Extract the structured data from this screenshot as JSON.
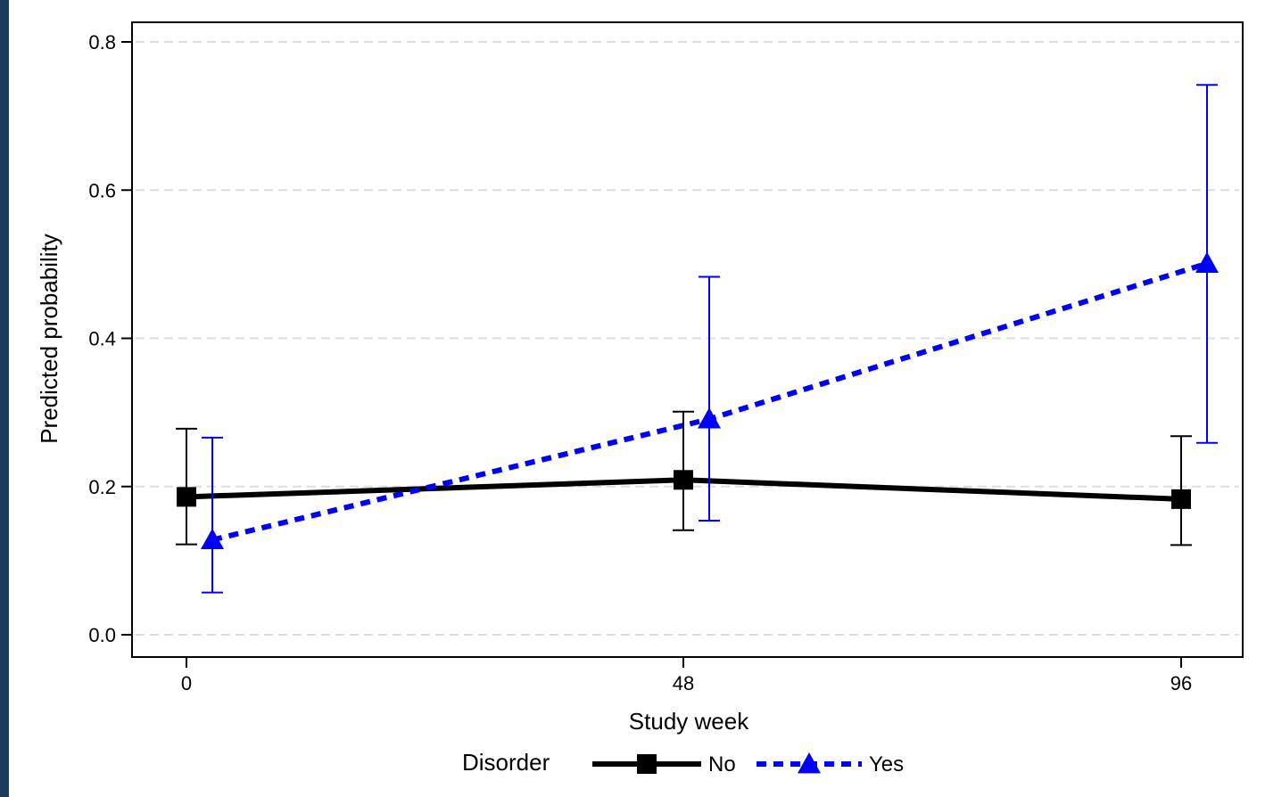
{
  "colors": {
    "frame_background": "#1f3b5c",
    "series_no": "#000000",
    "series_yes": "#0000ff",
    "grid": "#dddddd"
  },
  "chart_data": {
    "type": "line",
    "title": "",
    "xlabel": "Study week",
    "ylabel": "Predicted probability",
    "x": [
      0,
      48,
      96
    ],
    "x_ticks": [
      "0",
      "48",
      "96"
    ],
    "y_ticks": [
      "0.0",
      "0.2",
      "0.4",
      "0.6",
      "0.8"
    ],
    "ylim": [
      -0.03,
      0.83
    ],
    "grid": "horizontal dashed",
    "legend": {
      "title": "Disorder",
      "placement": "bottom-center"
    },
    "series": [
      {
        "name": "No",
        "color": "#000000",
        "marker": "square",
        "line_style": "solid",
        "values": [
          0.186,
          0.209,
          0.183
        ],
        "ci_lower": [
          0.122,
          0.141,
          0.121
        ],
        "ci_upper": [
          0.278,
          0.301,
          0.268
        ]
      },
      {
        "name": "Yes",
        "color": "#0000ff",
        "marker": "triangle",
        "line_style": "dashed",
        "values": [
          0.128,
          0.291,
          0.501
        ],
        "ci_lower": [
          0.057,
          0.154,
          0.259
        ],
        "ci_upper": [
          0.266,
          0.483,
          0.742
        ]
      }
    ]
  }
}
